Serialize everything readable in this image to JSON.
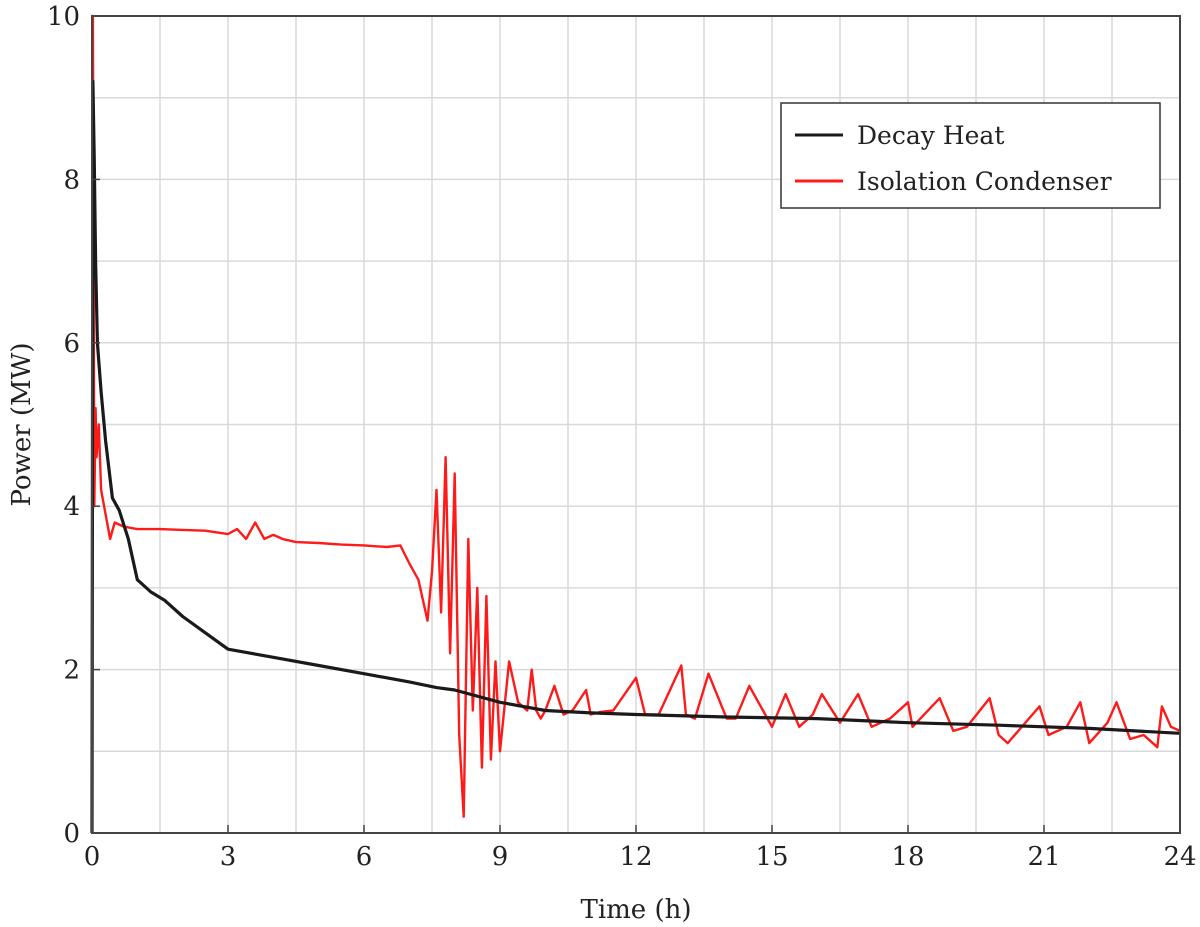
{
  "chart_data": {
    "type": "line",
    "title": "",
    "xlabel": "Time (h)",
    "ylabel": "Power (MW)",
    "xlim": [
      0,
      24
    ],
    "ylim": [
      0,
      10
    ],
    "xticks": [
      "0",
      "3",
      "6",
      "9",
      "12",
      "15",
      "18",
      "21",
      "24"
    ],
    "yticks": [
      "0",
      "2",
      "4",
      "6",
      "8",
      "10"
    ],
    "grid": true,
    "legend_position": "top-right",
    "series": [
      {
        "name": "Decay Heat",
        "color": "#1a1a1a",
        "x": [
          0,
          0.02,
          0.05,
          0.08,
          0.12,
          0.2,
          0.3,
          0.45,
          0.6,
          0.8,
          1.0,
          1.3,
          1.6,
          2.0,
          2.5,
          3.0,
          4.0,
          5.0,
          6.0,
          7.0,
          7.6,
          8.0,
          9.0,
          10.0,
          11.0,
          12.0,
          14.0,
          16.0,
          18.0,
          20.0,
          22.0,
          24.0
        ],
        "y": [
          0,
          9.2,
          8.2,
          7.0,
          6.0,
          5.4,
          4.8,
          4.1,
          3.95,
          3.6,
          3.1,
          2.95,
          2.85,
          2.65,
          2.45,
          2.25,
          2.15,
          2.05,
          1.95,
          1.85,
          1.78,
          1.75,
          1.6,
          1.5,
          1.47,
          1.45,
          1.42,
          1.4,
          1.35,
          1.32,
          1.28,
          1.22
        ]
      },
      {
        "name": "Isolation Condenser",
        "color": "#ff1a1a",
        "x": [
          0,
          0.02,
          0.05,
          0.08,
          0.1,
          0.15,
          0.2,
          0.3,
          0.4,
          0.5,
          0.7,
          1.0,
          1.5,
          2.0,
          2.5,
          3.0,
          3.2,
          3.4,
          3.6,
          3.8,
          4.0,
          4.2,
          4.5,
          5.0,
          5.5,
          6.0,
          6.5,
          6.8,
          7.0,
          7.2,
          7.4,
          7.5,
          7.6,
          7.7,
          7.8,
          7.9,
          8.0,
          8.1,
          8.2,
          8.3,
          8.4,
          8.5,
          8.6,
          8.7,
          8.8,
          8.9,
          9.0,
          9.2,
          9.4,
          9.6,
          9.7,
          9.8,
          9.9,
          10.0,
          10.2,
          10.4,
          10.6,
          10.9,
          11.0,
          11.2,
          11.5,
          12.0,
          12.2,
          12.5,
          13.0,
          13.1,
          13.3,
          13.6,
          14.0,
          14.2,
          14.5,
          15.0,
          15.3,
          15.6,
          15.9,
          16.1,
          16.5,
          16.9,
          17.2,
          17.6,
          18.0,
          18.1,
          18.7,
          19.0,
          19.3,
          19.8,
          20.0,
          20.2,
          20.9,
          21.1,
          21.5,
          21.8,
          22.0,
          22.4,
          22.6,
          22.9,
          23.2,
          23.5,
          23.6,
          23.8,
          24.0
        ],
        "y": [
          0,
          10.0,
          4.0,
          5.2,
          4.6,
          5.0,
          4.2,
          3.9,
          3.6,
          3.8,
          3.75,
          3.72,
          3.72,
          3.71,
          3.7,
          3.66,
          3.72,
          3.6,
          3.8,
          3.6,
          3.65,
          3.6,
          3.56,
          3.55,
          3.53,
          3.52,
          3.5,
          3.52,
          3.3,
          3.1,
          2.6,
          3.2,
          4.2,
          2.7,
          4.6,
          2.2,
          4.4,
          1.2,
          0.2,
          3.6,
          1.5,
          3.0,
          0.8,
          2.9,
          0.9,
          2.1,
          1.0,
          2.1,
          1.6,
          1.5,
          2.0,
          1.5,
          1.4,
          1.5,
          1.8,
          1.45,
          1.5,
          1.75,
          1.45,
          1.48,
          1.5,
          1.9,
          1.45,
          1.45,
          2.05,
          1.45,
          1.4,
          1.95,
          1.4,
          1.4,
          1.8,
          1.3,
          1.7,
          1.3,
          1.45,
          1.7,
          1.35,
          1.7,
          1.3,
          1.4,
          1.6,
          1.3,
          1.65,
          1.25,
          1.3,
          1.65,
          1.2,
          1.1,
          1.55,
          1.2,
          1.3,
          1.6,
          1.1,
          1.35,
          1.6,
          1.15,
          1.2,
          1.05,
          1.55,
          1.3,
          1.25
        ]
      }
    ]
  }
}
